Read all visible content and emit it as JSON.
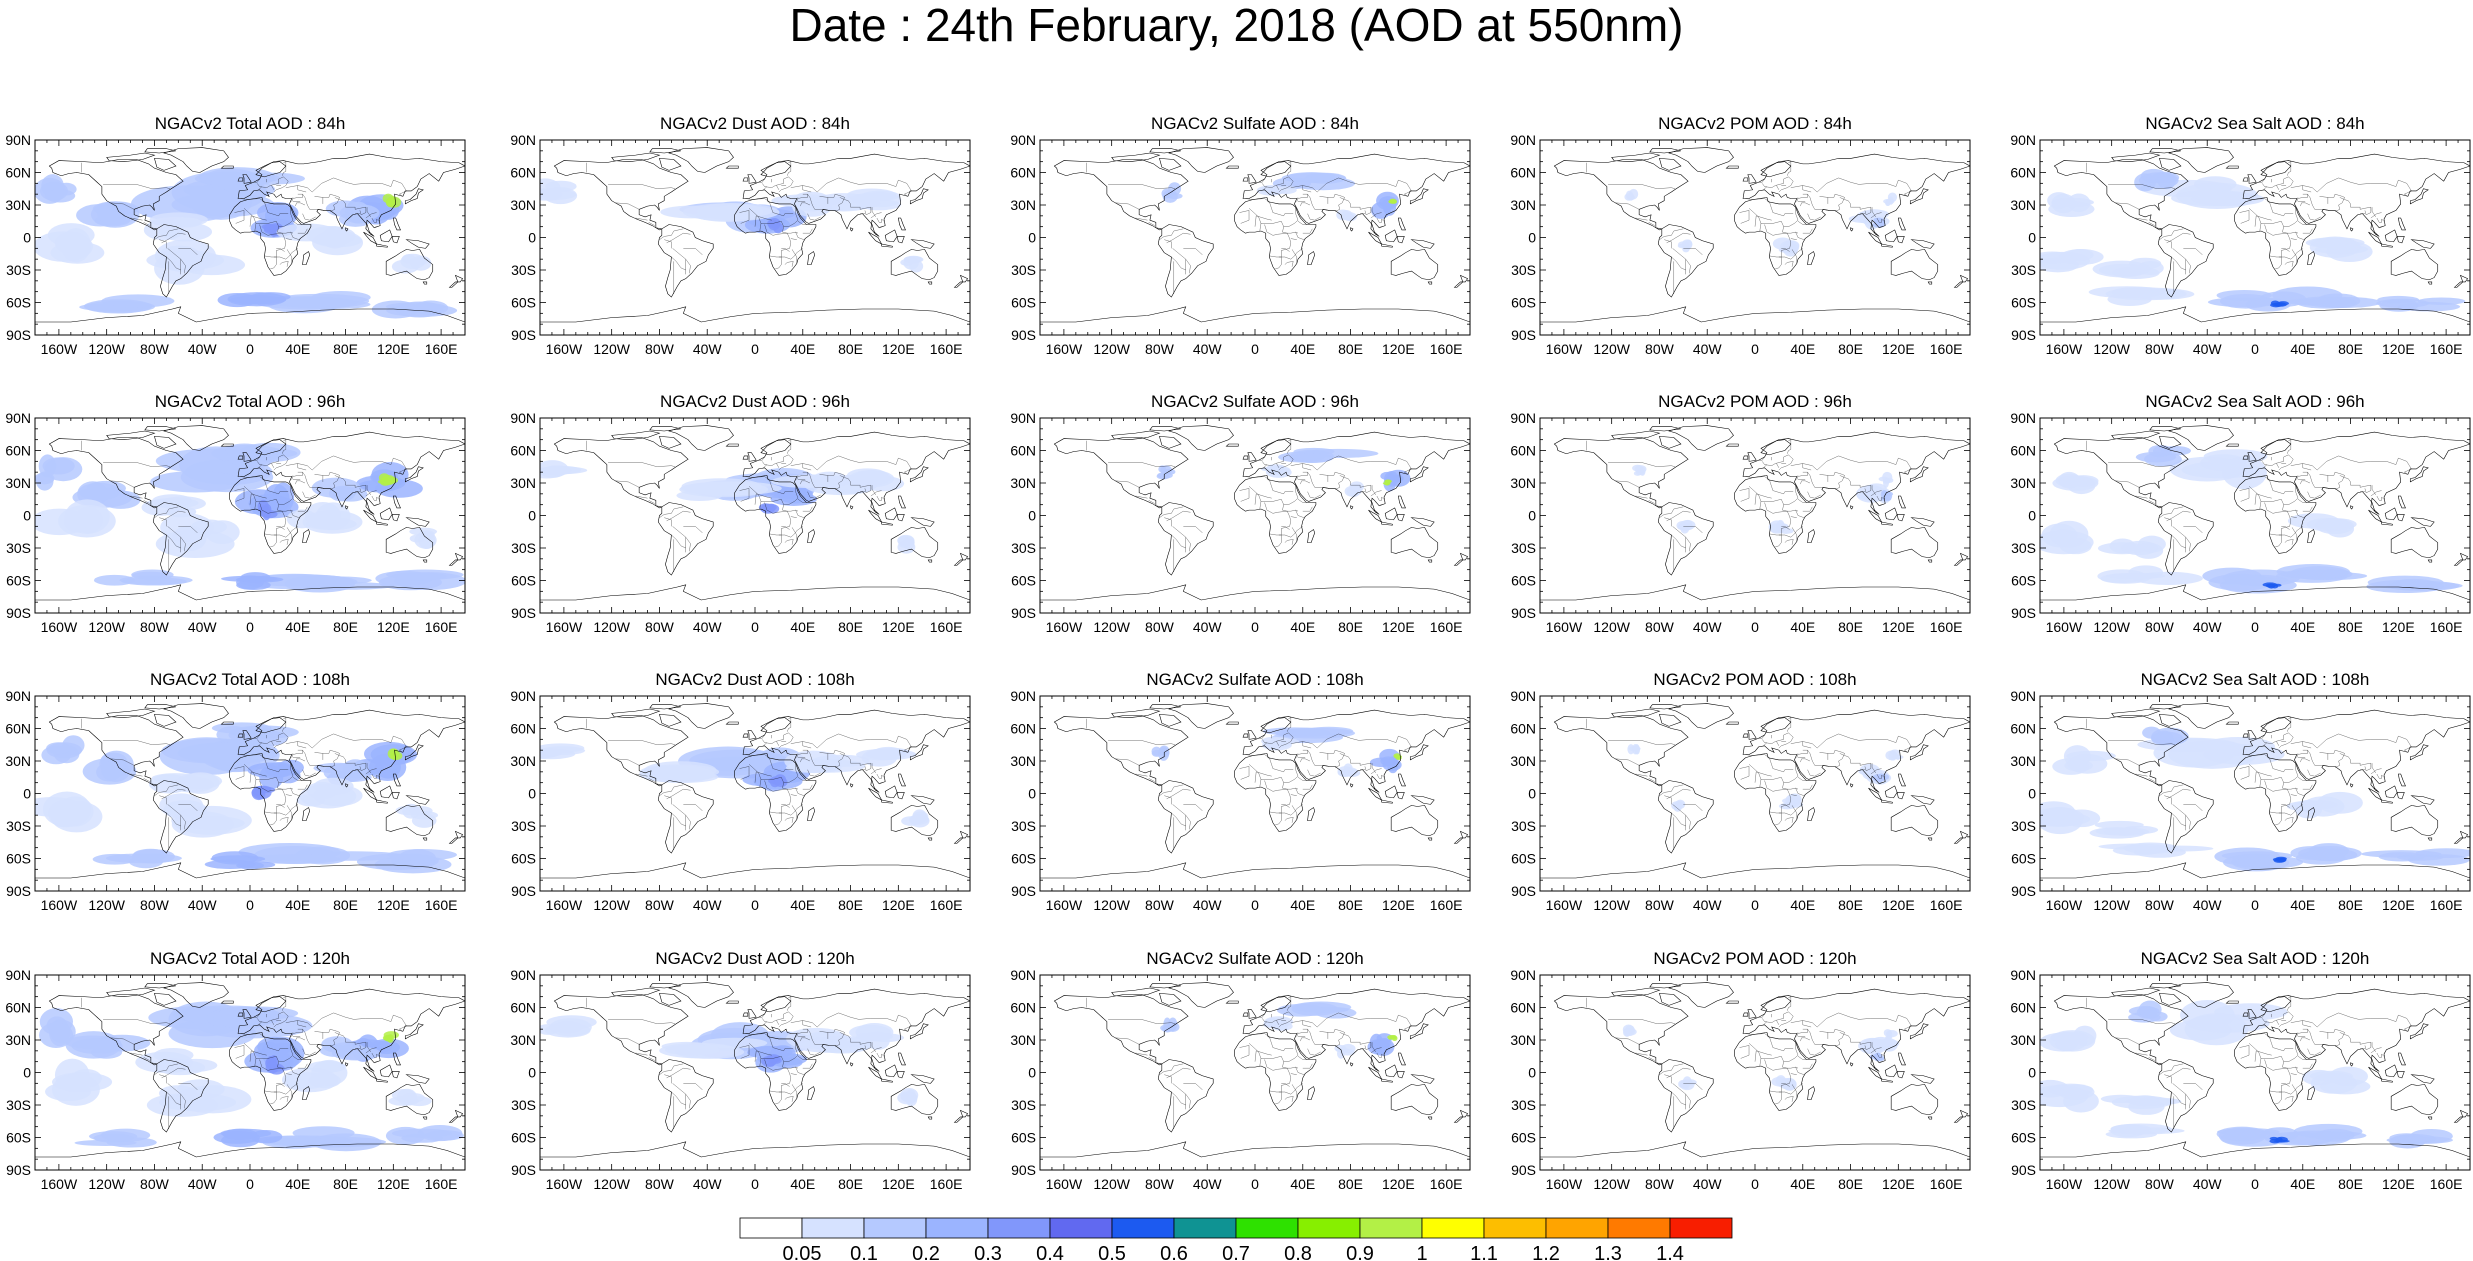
{
  "title": "Date : 24th February, 2018 (AOD at 550nm)",
  "row_titles": [
    [
      "NGACv2 Total AOD : 84h",
      "NGACv2 Dust AOD : 84h",
      "NGACv2 Sulfate AOD : 84h",
      "NGACv2 POM AOD : 84h",
      "NGACv2 Sea Salt AOD : 84h"
    ],
    [
      "NGACv2 Total AOD : 96h",
      "NGACv2 Dust AOD : 96h",
      "NGACv2 Sulfate AOD : 96h",
      "NGACv2 POM AOD : 96h",
      "NGACv2 Sea Salt AOD : 96h"
    ],
    [
      "NGACv2 Total AOD : 108h",
      "NGACv2 Dust AOD : 108h",
      "NGACv2 Sulfate AOD : 108h",
      "NGACv2 POM AOD : 108h",
      "NGACv2 Sea Salt AOD : 108h"
    ],
    [
      "NGACv2 Total AOD : 120h",
      "NGACv2 Dust AOD : 120h",
      "NGACv2 Sulfate AOD : 120h",
      "NGACv2 POM AOD : 120h",
      "NGACv2 Sea Salt  AOD : 120h"
    ]
  ],
  "lat_labels": [
    "90N",
    "60N",
    "30N",
    "0",
    "30S",
    "60S",
    "90S"
  ],
  "lon_labels": [
    "160W",
    "120W",
    "80W",
    "40W",
    "0",
    "40E",
    "80E",
    "120E",
    "160E"
  ],
  "lon_values": [
    -160,
    -120,
    -80,
    -40,
    0,
    40,
    80,
    120,
    160
  ],
  "lat_values": [
    90,
    60,
    30,
    0,
    -30,
    -60,
    -90
  ],
  "colorbar": {
    "labels": [
      "0.05",
      "0.1",
      "0.2",
      "0.3",
      "0.4",
      "0.5",
      "0.6",
      "0.7",
      "0.8",
      "0.9",
      "1",
      "1.1",
      "1.2",
      "1.3",
      "1.4"
    ],
    "colors": [
      "#ffffff",
      "#d6e2ff",
      "#b5c9ff",
      "#9bb4ff",
      "#8197fb",
      "#6169f0",
      "#1c5af0",
      "#0f9393",
      "#2ee100",
      "#87ef00",
      "#b3f046",
      "#ffff00",
      "#fdbe00",
      "#ffa400",
      "#ff7a00",
      "#f81e00"
    ]
  }
}
